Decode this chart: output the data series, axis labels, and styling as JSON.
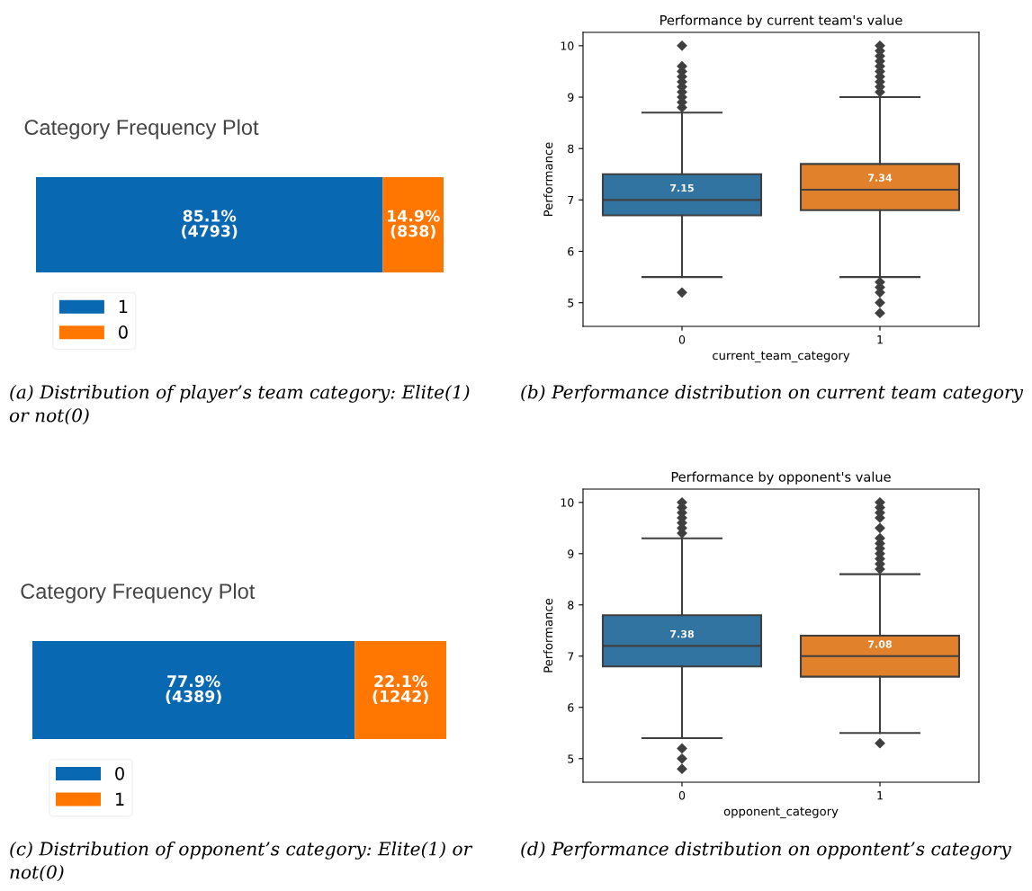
{
  "chart_data": [
    {
      "type": "bar",
      "orientation": "horizontal",
      "stacked": true,
      "title": "Category Frequency Plot",
      "categories": [
        null
      ],
      "tick_labels": false,
      "legend": "bottom left",
      "series": [
        {
          "name": "1",
          "color": "#0868b1",
          "values": [
            85.1
          ],
          "value_labels": [
            "85.1%\n(4793)"
          ]
        },
        {
          "name": "0",
          "color": "#ff7700",
          "values": [
            14.9
          ],
          "value_labels": [
            "14.9%\n(838)"
          ]
        }
      ],
      "annotations": [
        "(a) Distribution of player’s team category: Elite(1) or not(0)"
      ]
    },
    {
      "type": "box",
      "title": "Performance by current team's value",
      "xlabel": "current_team_category",
      "ylabel": "Performance",
      "categories": [
        "0",
        "1"
      ],
      "colors": [
        "#3274a1",
        "#e1812c"
      ],
      "marker": "diamond",
      "ylim": [
        4.54,
        10.26
      ],
      "yticks": [
        5,
        6,
        7,
        8,
        9,
        10
      ],
      "boxes": [
        {
          "low": 5.5,
          "q1": 6.7,
          "median": 7.0,
          "q3": 7.5,
          "high": 8.7,
          "outliers": [
            5.2,
            8.8,
            8.9,
            9.0,
            9.1,
            9.2,
            9.3,
            9.4,
            9.5,
            9.6,
            10.0
          ]
        },
        {
          "low": 5.5,
          "q1": 6.8,
          "median": 7.2,
          "q3": 7.7,
          "high": 9.0,
          "outliers": [
            4.8,
            5.0,
            5.2,
            5.3,
            5.4,
            9.1,
            9.2,
            9.3,
            9.4,
            9.5,
            9.6,
            9.7,
            9.8,
            9.9,
            10.0
          ]
        }
      ],
      "annotations": [
        "(b) Performance distribution on current team category",
        "7.15",
        "7.34"
      ]
    },
    {
      "type": "bar",
      "orientation": "horizontal",
      "stacked": true,
      "title": "Category Frequency Plot",
      "categories": [
        null
      ],
      "tick_labels": false,
      "legend": "bottom left",
      "series": [
        {
          "name": "0",
          "color": "#0868b1",
          "values": [
            77.9
          ],
          "value_labels": [
            "77.9%\n(4389)"
          ]
        },
        {
          "name": "1",
          "color": "#ff7700",
          "values": [
            22.1
          ],
          "value_labels": [
            "22.1%\n(1242)"
          ]
        }
      ],
      "annotations": [
        "(c) Distribution of opponent’s category: Elite(1) or not(0)"
      ]
    },
    {
      "type": "box",
      "title": "Performance by opponent's value",
      "xlabel": "opponent_category",
      "ylabel": "Performance",
      "categories": [
        "0",
        "1"
      ],
      "colors": [
        "#3274a1",
        "#e1812c"
      ],
      "marker": "diamond",
      "ylim": [
        4.54,
        10.26
      ],
      "yticks": [
        5,
        6,
        7,
        8,
        9,
        10
      ],
      "boxes": [
        {
          "low": 5.4,
          "q1": 6.8,
          "median": 7.2,
          "q3": 7.8,
          "high": 9.3,
          "outliers": [
            4.8,
            5.0,
            5.2,
            9.4,
            9.5,
            9.6,
            9.7,
            9.8,
            9.9,
            10.0
          ]
        },
        {
          "low": 5.5,
          "q1": 6.6,
          "median": 7.0,
          "q3": 7.4,
          "high": 8.6,
          "outliers": [
            5.3,
            8.7,
            8.8,
            8.9,
            9.0,
            9.1,
            9.2,
            9.3,
            9.5,
            9.7,
            9.8,
            9.9,
            10.0
          ]
        }
      ],
      "annotations": [
        "(d) Performance distribution on oppontent’s category",
        "7.38",
        "7.08"
      ]
    }
  ]
}
